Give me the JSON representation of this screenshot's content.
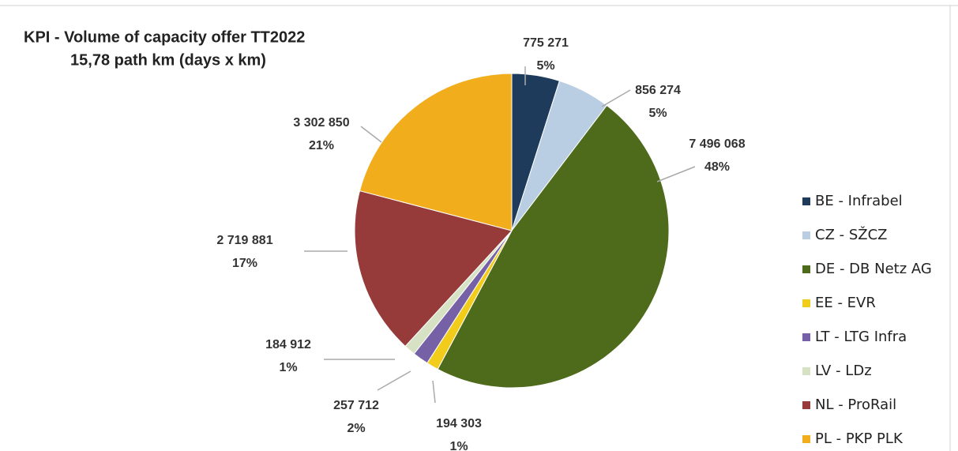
{
  "chart_data": {
    "type": "pie",
    "title": "KPI - Volume of capacity offer TT2022",
    "subtitle": "15,78 path km (days x km)",
    "categories": [
      "BE - Infrabel",
      "CZ - SŽCZ",
      "DE - DB Netz AG",
      "EE - EVR",
      "LT - LTG Infra",
      "LV - LDz",
      "NL - ProRail",
      "PL - PKP PLK"
    ],
    "values": [
      775271,
      856274,
      7496068,
      194303,
      257712,
      184912,
      2719881,
      3302850
    ],
    "value_labels": [
      "775 271",
      "856 274",
      "7 496 068",
      "194 303",
      "257 712",
      "184 912",
      "2 719 881",
      "3 302 850"
    ],
    "percent_labels": [
      "5%",
      "5%",
      "48%",
      "1%",
      "2%",
      "1%",
      "17%",
      "21%"
    ],
    "colors": [
      "#1f3b5c",
      "#b9cde3",
      "#4e6b1c",
      "#f2cc1a",
      "#7661a6",
      "#d6e2c3",
      "#963a3a",
      "#f2ad1c"
    ],
    "legend": "right"
  }
}
